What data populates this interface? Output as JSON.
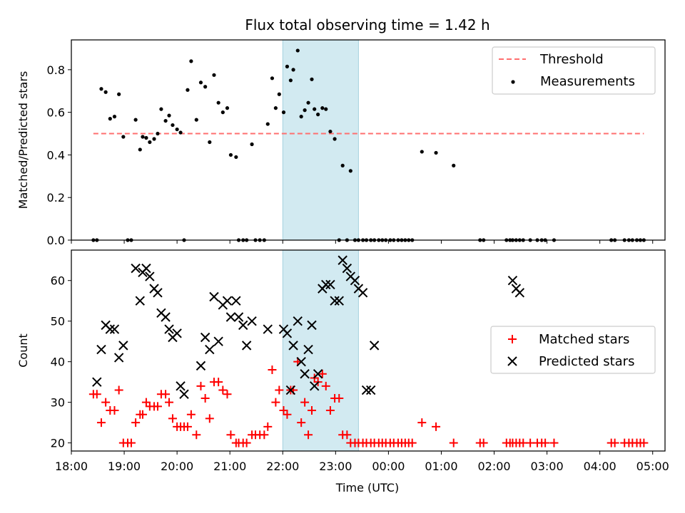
{
  "chart_data": [
    {
      "type": "scatter",
      "title": "Flux total observing time = 1.42 h",
      "xlabel": "",
      "ylabel": "Matched/Predicted stars",
      "xlim": [
        "18:00",
        "05:14"
      ],
      "ylim": [
        0,
        0.94
      ],
      "yticks": [
        "0.0",
        "0.2",
        "0.4",
        "0.6",
        "0.8"
      ],
      "highlight_span": {
        "from": "22:00",
        "to": "23:26",
        "color": "#add8e6"
      },
      "legend": {
        "position": "top-right",
        "entries": [
          "Threshold",
          "Measurements"
        ]
      },
      "threshold": {
        "name": "Threshold",
        "y": 0.5,
        "x": [
          "18:25",
          "04:50"
        ],
        "color": "#ff6f6f"
      },
      "series": [
        {
          "name": "Measurements",
          "color": "#000000",
          "x": [
            "18:25",
            "18:29",
            "18:34",
            "18:39",
            "18:44",
            "18:49",
            "18:54",
            "18:59",
            "19:04",
            "19:08",
            "19:13",
            "19:18",
            "19:21",
            "19:25",
            "19:29",
            "19:34",
            "19:38",
            "19:42",
            "19:47",
            "19:51",
            "19:55",
            "20:00",
            "20:04",
            "20:08",
            "20:12",
            "20:16",
            "20:22",
            "20:27",
            "20:32",
            "20:37",
            "20:42",
            "20:47",
            "20:52",
            "20:57",
            "21:01",
            "21:07",
            "21:10",
            "21:15",
            "21:19",
            "21:25",
            "21:29",
            "21:34",
            "21:39",
            "21:43",
            "21:48",
            "21:52",
            "21:56",
            "22:01",
            "22:05",
            "22:09",
            "22:12",
            "22:17",
            "22:21",
            "22:25",
            "22:29",
            "22:33",
            "22:36",
            "22:40",
            "22:45",
            "22:49",
            "22:54",
            "22:59",
            "23:04",
            "23:08",
            "23:13",
            "23:17",
            "23:22",
            "23:26",
            "23:31",
            "23:35",
            "23:40",
            "23:44",
            "23:49",
            "23:53",
            "23:57",
            "00:02",
            "00:06",
            "00:11",
            "00:15",
            "00:19",
            "00:23",
            "00:27",
            "00:38",
            "00:54",
            "01:14",
            "01:44",
            "01:48",
            "02:14",
            "02:18",
            "02:21",
            "02:25",
            "02:29",
            "02:33",
            "02:41",
            "02:49",
            "02:54",
            "02:58",
            "03:08",
            "04:13",
            "04:17",
            "04:28",
            "04:33",
            "04:37",
            "04:42",
            "04:46",
            "04:50"
          ],
          "y": [
            0.0,
            0.0,
            0.71,
            0.695,
            0.57,
            0.58,
            0.685,
            0.485,
            0.0,
            0.0,
            0.565,
            0.425,
            0.485,
            0.48,
            0.46,
            0.475,
            0.5,
            0.615,
            0.56,
            0.585,
            0.54,
            0.52,
            0.505,
            0.0,
            0.705,
            0.84,
            0.565,
            0.74,
            0.72,
            0.46,
            0.775,
            0.645,
            0.6,
            0.62,
            0.4,
            0.39,
            0.0,
            0.0,
            0.0,
            0.45,
            0.0,
            0.0,
            0.0,
            0.545,
            0.76,
            0.62,
            0.685,
            0.6,
            0.815,
            0.75,
            0.8,
            0.89,
            0.58,
            0.61,
            0.645,
            0.755,
            0.615,
            0.59,
            0.62,
            0.615,
            0.51,
            0.475,
            0.0,
            0.35,
            0.0,
            0.325,
            0.0,
            0.0,
            0.0,
            0.0,
            0.0,
            0.0,
            0.0,
            0.0,
            0.0,
            0.0,
            0.0,
            0.0,
            0.0,
            0.0,
            0.0,
            0.0,
            0.415,
            0.41,
            0.35,
            0.0,
            0.0,
            0.0,
            0.0,
            0.0,
            0.0,
            0.0,
            0.0,
            0.0,
            0.0,
            0.0,
            0.0,
            0.0,
            0.0,
            0.0,
            0.0,
            0.0,
            0.0,
            0.0,
            0.0,
            0.0
          ]
        }
      ]
    },
    {
      "type": "scatter",
      "title": "",
      "xlabel": "Time (UTC)",
      "ylabel": "Count",
      "xlim": [
        "18:00",
        "05:14"
      ],
      "ylim": [
        18,
        67.5
      ],
      "yticks": [
        "20",
        "30",
        "40",
        "50",
        "60"
      ],
      "xticks": [
        "18:00",
        "19:00",
        "20:00",
        "21:00",
        "22:00",
        "23:00",
        "00:00",
        "01:00",
        "02:00",
        "03:00",
        "04:00",
        "05:00"
      ],
      "highlight_span": {
        "from": "22:00",
        "to": "23:26",
        "color": "#add8e6"
      },
      "legend": {
        "position": "center-right",
        "entries": [
          "Matched stars",
          "Predicted stars"
        ]
      },
      "series": [
        {
          "name": "Matched stars",
          "marker": "+",
          "color": "#ff0000",
          "x": [
            "18:25",
            "18:29",
            "18:34",
            "18:39",
            "18:44",
            "18:49",
            "18:54",
            "18:59",
            "19:04",
            "19:08",
            "19:13",
            "19:18",
            "19:21",
            "19:25",
            "19:29",
            "19:34",
            "19:38",
            "19:42",
            "19:47",
            "19:51",
            "19:55",
            "20:00",
            "20:04",
            "20:08",
            "20:12",
            "20:16",
            "20:22",
            "20:27",
            "20:32",
            "20:37",
            "20:42",
            "20:47",
            "20:52",
            "20:57",
            "21:01",
            "21:07",
            "21:10",
            "21:15",
            "21:19",
            "21:25",
            "21:29",
            "21:34",
            "21:39",
            "21:43",
            "21:48",
            "21:52",
            "21:56",
            "22:01",
            "22:05",
            "22:09",
            "22:12",
            "22:17",
            "22:21",
            "22:25",
            "22:29",
            "22:33",
            "22:36",
            "22:40",
            "22:45",
            "22:49",
            "22:54",
            "22:59",
            "23:04",
            "23:08",
            "23:13",
            "23:17",
            "23:22",
            "23:26",
            "23:31",
            "23:35",
            "23:40",
            "23:44",
            "23:49",
            "23:53",
            "23:57",
            "00:02",
            "00:06",
            "00:11",
            "00:15",
            "00:19",
            "00:23",
            "00:27",
            "00:38",
            "00:54",
            "01:14",
            "01:44",
            "01:48",
            "02:14",
            "02:18",
            "02:21",
            "02:25",
            "02:29",
            "02:33",
            "02:41",
            "02:49",
            "02:54",
            "02:58",
            "03:08",
            "04:13",
            "04:17",
            "04:28",
            "04:33",
            "04:37",
            "04:42",
            "04:46",
            "04:50"
          ],
          "y": [
            32,
            32,
            25,
            30,
            28,
            28,
            33,
            20,
            20,
            20,
            25,
            27,
            27,
            30,
            29,
            29,
            29,
            32,
            32,
            30,
            26,
            24,
            24,
            24,
            24,
            27,
            22,
            34,
            31,
            26,
            35,
            35,
            33,
            32,
            22,
            20,
            20,
            20,
            20,
            22,
            22,
            22,
            22,
            24,
            38,
            30,
            33,
            28,
            27,
            33,
            33,
            40,
            25,
            30,
            22,
            28,
            36,
            35,
            37,
            34,
            28,
            31,
            31,
            22,
            22,
            20,
            20,
            20,
            20,
            20,
            20,
            20,
            20,
            20,
            20,
            20,
            20,
            20,
            20,
            20,
            20,
            20,
            25,
            24,
            20,
            20,
            20,
            20,
            20,
            20,
            20,
            20,
            20,
            20,
            20,
            20,
            20,
            20,
            20,
            20,
            20,
            20,
            20,
            20,
            20,
            20
          ]
        },
        {
          "name": "Predicted stars",
          "marker": "x",
          "color": "#000000",
          "x": [
            "18:29",
            "18:34",
            "18:39",
            "18:44",
            "18:49",
            "18:54",
            "18:59",
            "19:13",
            "19:18",
            "19:21",
            "19:25",
            "19:29",
            "19:34",
            "19:38",
            "19:42",
            "19:47",
            "19:51",
            "19:55",
            "20:00",
            "20:04",
            "20:08",
            "20:27",
            "20:32",
            "20:37",
            "20:42",
            "20:47",
            "20:52",
            "20:57",
            "21:01",
            "21:07",
            "21:10",
            "21:15",
            "21:19",
            "21:25",
            "21:43",
            "22:01",
            "22:05",
            "22:09",
            "22:12",
            "22:17",
            "22:21",
            "22:25",
            "22:29",
            "22:33",
            "22:36",
            "22:40",
            "22:45",
            "22:49",
            "22:54",
            "22:59",
            "23:04",
            "23:08",
            "23:13",
            "23:17",
            "23:22",
            "23:26",
            "23:31",
            "23:35",
            "23:40",
            "23:44",
            "02:21",
            "02:25",
            "02:29"
          ],
          "y": [
            35,
            43,
            49,
            48,
            48,
            41,
            44,
            63,
            55,
            62,
            63,
            61,
            58,
            57,
            52,
            51,
            48,
            46,
            47,
            34,
            32,
            39,
            46,
            43,
            56,
            45,
            54,
            55,
            51,
            55,
            51,
            49,
            44,
            50,
            48,
            48,
            47,
            33,
            44,
            50,
            40,
            37,
            43,
            49,
            34,
            37,
            58,
            59,
            59,
            55,
            55,
            65,
            63,
            61,
            60,
            58,
            57,
            33,
            33,
            44,
            60,
            58,
            57
          ]
        }
      ]
    }
  ]
}
